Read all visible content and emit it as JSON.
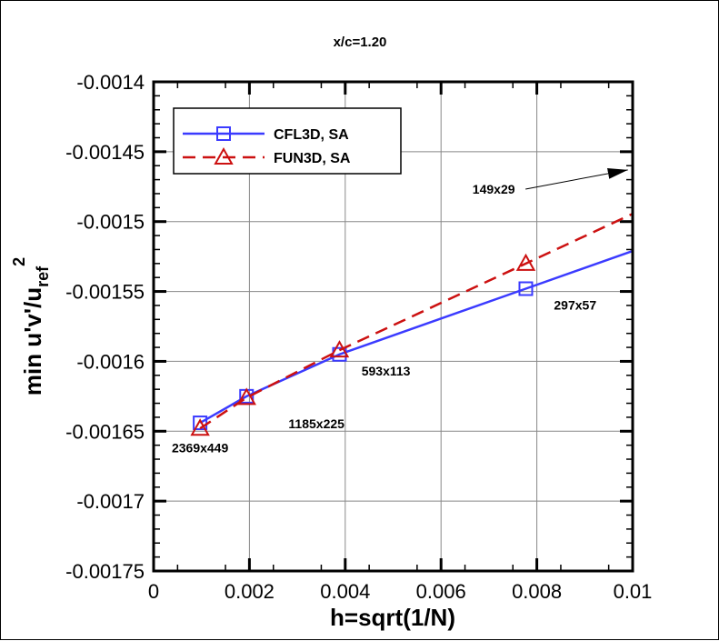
{
  "chart_data": {
    "type": "line",
    "title": "x/c=1.20",
    "xlabel": "h=sqrt(1/N)",
    "ylabel": {
      "main": "min u'v'/u",
      "subscript": "ref",
      "superscript": "2"
    },
    "xlim": [
      0,
      0.01
    ],
    "ylim": [
      -0.00175,
      -0.0014
    ],
    "xticks": [
      "0",
      "0.002",
      "0.004",
      "0.006",
      "0.008",
      "0.01"
    ],
    "yticks": [
      "-0.00175",
      "-0.0017",
      "-0.00165",
      "-0.0016",
      "-0.00155",
      "-0.0015",
      "-0.00145",
      "-0.0014"
    ],
    "grid": true,
    "legend_position": "top-left",
    "series": [
      {
        "name": "CFL3D, SA",
        "color": "#3b3bff",
        "line": "solid",
        "marker": "square",
        "x": [
          0.00097,
          0.00194,
          0.00388,
          0.00777
        ],
        "y": [
          -0.001644,
          -0.001625,
          -0.001595,
          -0.001548
        ]
      },
      {
        "name": "FUN3D, SA",
        "color": "#cc1111",
        "line": "dashed",
        "marker": "triangle",
        "x": [
          0.00097,
          0.00194,
          0.00388,
          0.00777
        ],
        "y": [
          -0.001648,
          -0.001626,
          -0.001592,
          -0.00153
        ]
      }
    ],
    "annotations": [
      {
        "text": "2369x449",
        "x": 0.00097,
        "y": -0.001665
      },
      {
        "text": "1185x225",
        "x": 0.0034,
        "y": -0.001648
      },
      {
        "text": "593x113",
        "x": 0.00485,
        "y": -0.00161
      },
      {
        "text": "297x57",
        "x": 0.0088,
        "y": -0.001563
      },
      {
        "text": "149x29",
        "x": 0.0071,
        "y": -0.00148,
        "arrow_to": [
          0.0099,
          -0.001463
        ]
      }
    ]
  }
}
